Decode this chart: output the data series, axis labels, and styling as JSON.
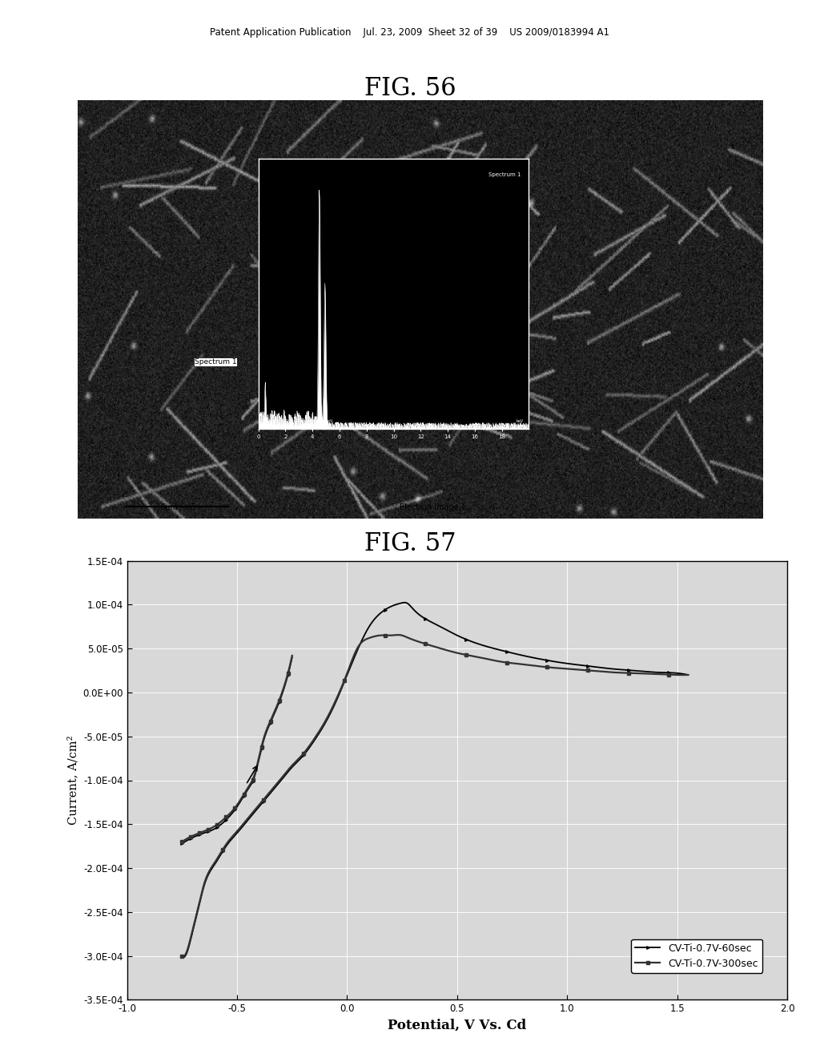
{
  "header_text": "Patent Application Publication    Jul. 23, 2009  Sheet 32 of 39    US 2009/0183994 A1",
  "fig56_title": "FIG. 56",
  "fig57_title": "FIG. 57",
  "xlabel": "Potential, V Vs. Cd",
  "ylabel": "Current, A/cm²",
  "xlim": [
    -1.0,
    2.0
  ],
  "ylim": [
    -0.00035,
    0.00015
  ],
  "xticks": [
    -1.0,
    -0.5,
    0.0,
    0.5,
    1.0,
    1.5,
    2.0
  ],
  "yticks": [
    -0.00035,
    -0.0003,
    -0.00025,
    -0.0002,
    -0.00015,
    -0.0001,
    -5e-05,
    0.0,
    5e-05,
    0.0001,
    0.00015
  ],
  "ytick_labels": [
    "-3.5E-04",
    "-3.0E-04",
    "-2.5E-04",
    "-2.0E-04",
    "-1.5E-04",
    "-1.0E-04",
    "-5.0E-05",
    "0.0E+00",
    "5.0E-05",
    "1.0E-04",
    "1.5E-04"
  ],
  "legend_labels": [
    "CV-Ti-0.7V-60sec",
    "CV-Ti-0.7V-300sec"
  ],
  "background_color": "#ffffff",
  "plot_bg_color": "#d8d8d8",
  "line_color": "#000000",
  "grid_color": "#ffffff"
}
